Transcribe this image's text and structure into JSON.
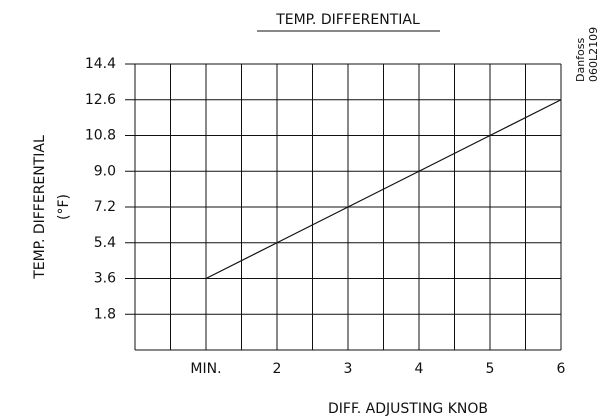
{
  "chart_data": {
    "type": "line",
    "title": "TEMP. DIFFERENTIAL",
    "y_label": [
      "TEMP. DIFFERENTIAL",
      "(°F)"
    ],
    "x_label": "DIFF. ADJUSTING KNOB",
    "note": [
      "Danfoss",
      "060L2109"
    ],
    "x": [
      1,
      2,
      3,
      4,
      5,
      6
    ],
    "series": [
      {
        "color": "#111111",
        "values": [
          3.6,
          5.4,
          7.2,
          9.0,
          10.8,
          12.6
        ]
      }
    ],
    "xlim": [
      0,
      6
    ],
    "xticks": [
      {
        "value": 1,
        "label": "MIN."
      },
      2,
      3,
      4,
      5,
      6
    ],
    "xminorticks": [
      0.5,
      1.5,
      2.5,
      3.5,
      4.5,
      5.5
    ],
    "ylim": [
      0,
      14.4
    ],
    "yticks": [
      1.8,
      3.6,
      5.4,
      7.2,
      {
        "value": 9,
        "label": "9.0"
      },
      10.8,
      12.6,
      14.4
    ],
    "grid": true
  }
}
